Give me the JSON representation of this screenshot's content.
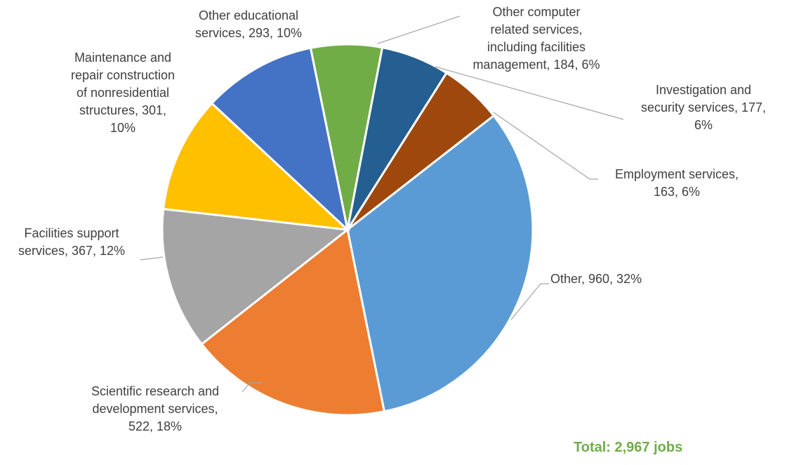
{
  "chart_data": {
    "type": "pie",
    "slices": [
      {
        "category": "Other computer related services, including facilities management",
        "value": 184,
        "percent_label": "6%",
        "color": "#255e91",
        "label_lines": [
          "Other computer",
          "related services,",
          "including facilities",
          "management, 184, 6%"
        ]
      },
      {
        "category": "Investigation and security services",
        "value": 177,
        "percent_label": "6%",
        "color": "#9e480e",
        "label_lines": [
          "Investigation and",
          "security services, 177,",
          "6%"
        ]
      },
      {
        "category": "Employment services",
        "value": 163,
        "percent_label": "6%",
        "color": "#5b9bd5",
        "label_lines": [
          "Employment services,",
          "163, 6%"
        ]
      },
      {
        "category": "Other",
        "value": 960,
        "percent_label": "32%",
        "color": "#ed7d31",
        "label_lines": [
          "Other, 960, 32%"
        ]
      },
      {
        "category": "Scientific research and development services",
        "value": 522,
        "percent_label": "18%",
        "color": "#a5a5a5",
        "label_lines": [
          "Scientific research and",
          "development services,",
          "522, 18%"
        ]
      },
      {
        "category": "Facilities support services",
        "value": 367,
        "percent_label": "12%",
        "color": "#ffc000",
        "label_lines": [
          "Facilities support",
          "services, 367, 12%"
        ]
      },
      {
        "category": "Maintenance and repair construction of nonresidential structures",
        "value": 301,
        "percent_label": "10%",
        "color": "#4472c4",
        "label_lines": [
          "Maintenance and",
          "repair construction",
          "of nonresidential",
          "structures, 301,",
          "10%"
        ]
      },
      {
        "category": "Other educational services",
        "value": 293,
        "percent_label": "10%",
        "color": "#70ad47",
        "label_lines": [
          "Other educational",
          "services, 293, 10%"
        ]
      }
    ],
    "start_angle_deg": 0,
    "direction": "clockwise",
    "legend": "none"
  },
  "total_label": "Total: 2,967 jobs",
  "colors": {
    "label_text": "#404040",
    "leader_line": "#a6a6a6",
    "total_text": "#70ad47"
  }
}
